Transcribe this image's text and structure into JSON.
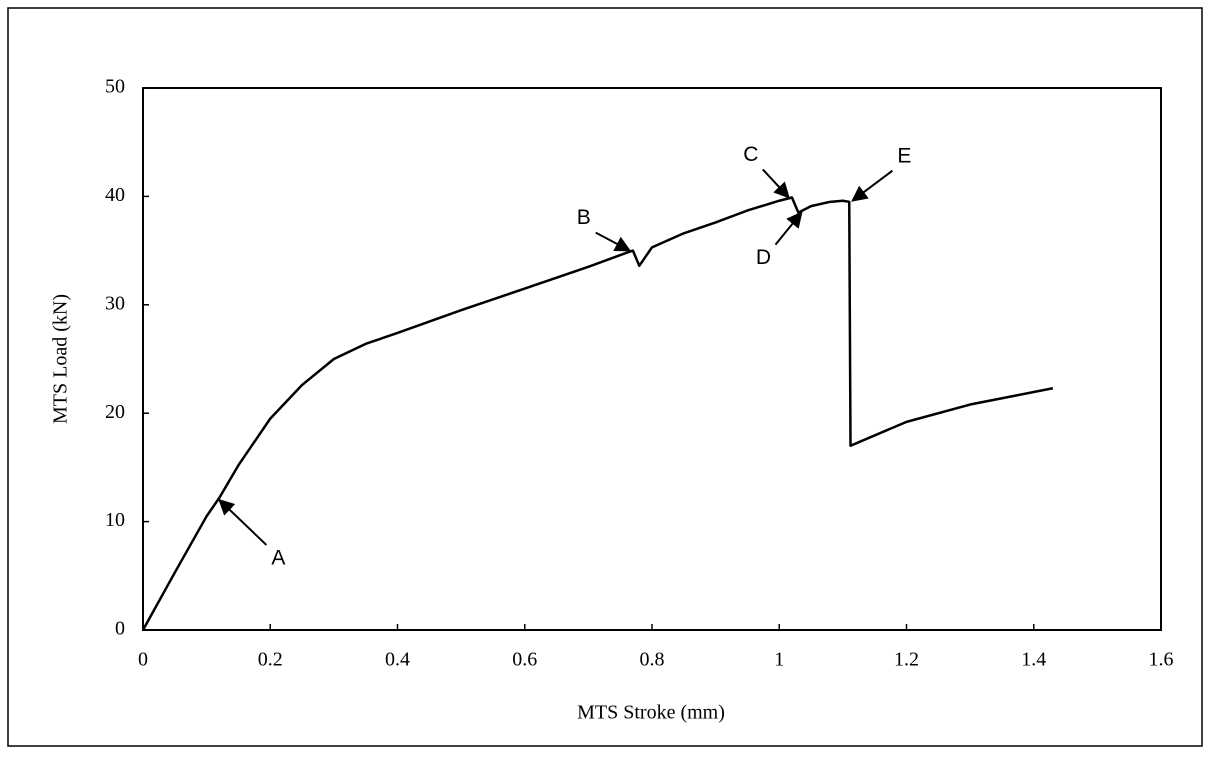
{
  "chart_data": {
    "type": "line",
    "x_label": "MTS Stroke (mm)",
    "y_label": "MTS Load (kN)",
    "series": [
      {
        "name": "MTS Load",
        "color": "#000000",
        "x": [
          0,
          0.05,
          0.1,
          0.12,
          0.15,
          0.2,
          0.25,
          0.3,
          0.35,
          0.4,
          0.5,
          0.6,
          0.7,
          0.76,
          0.77,
          0.78,
          0.8,
          0.85,
          0.9,
          0.95,
          1.0,
          1.02,
          1.03,
          1.05,
          1.08,
          1.1,
          1.11,
          1.112,
          1.12,
          1.2,
          1.3,
          1.43
        ],
        "values": [
          0,
          5.3,
          10.5,
          12.2,
          15.2,
          19.5,
          22.6,
          25,
          26.4,
          27.4,
          29.5,
          31.5,
          33.5,
          34.8,
          35,
          33.6,
          35.3,
          36.6,
          37.6,
          38.7,
          39.6,
          39.9,
          38.5,
          39.1,
          39.5,
          39.6,
          39.5,
          17,
          17.2,
          19.2,
          20.8,
          22.3
        ]
      }
    ],
    "annotations": [
      {
        "text": "A",
        "x": 0.12,
        "y": 12
      },
      {
        "text": "B",
        "x": 0.765,
        "y": 35
      },
      {
        "text": "C",
        "x": 1.015,
        "y": 39.9
      },
      {
        "text": "D",
        "x": 1.035,
        "y": 38.5
      },
      {
        "text": "E",
        "x": 1.115,
        "y": 39.6
      }
    ],
    "xlim": [
      0,
      1.6
    ],
    "xticks": [
      0,
      0.2,
      0.4,
      0.6,
      0.8,
      1,
      1.2,
      1.4,
      1.6
    ],
    "ylim": [
      0,
      50
    ],
    "yticks": [
      0,
      10,
      20,
      30,
      40,
      50
    ],
    "grid": false
  }
}
